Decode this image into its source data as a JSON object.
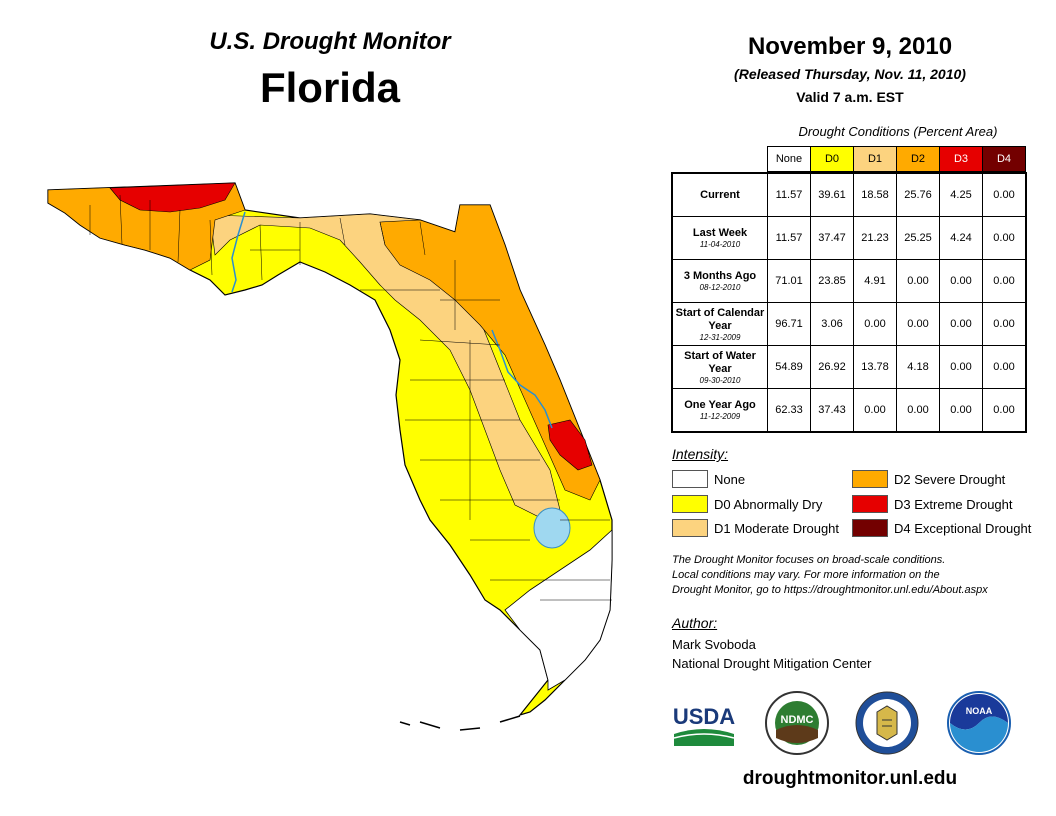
{
  "header": {
    "title": "U.S. Drought Monitor",
    "state": "Florida",
    "date": "November 9, 2010",
    "released": "(Released Thursday, Nov. 11, 2010)",
    "valid": "Valid 7 a.m. EST"
  },
  "conditions": {
    "title": "Drought Conditions (Percent Area)",
    "columns": [
      "None",
      "D0",
      "D1",
      "D2",
      "D3",
      "D4"
    ],
    "column_colors": [
      "#ffffff",
      "#ffff00",
      "#fcd37f",
      "#ffaa00",
      "#e60000",
      "#730000"
    ],
    "rows": [
      {
        "label": "Current",
        "sub": "",
        "values": [
          "11.57",
          "39.61",
          "18.58",
          "25.76",
          "4.25",
          "0.00"
        ]
      },
      {
        "label": "Last Week",
        "sub": "11-04-2010",
        "values": [
          "11.57",
          "37.47",
          "21.23",
          "25.25",
          "4.24",
          "0.00"
        ]
      },
      {
        "label": "3 Months Ago",
        "sub": "08-12-2010",
        "values": [
          "71.01",
          "23.85",
          "4.91",
          "0.00",
          "0.00",
          "0.00"
        ]
      },
      {
        "label": "Start of Calendar Year",
        "sub": "12-31-2009",
        "values": [
          "96.71",
          "3.06",
          "0.00",
          "0.00",
          "0.00",
          "0.00"
        ]
      },
      {
        "label": "Start of Water Year",
        "sub": "09-30-2010",
        "values": [
          "54.89",
          "26.92",
          "13.78",
          "4.18",
          "0.00",
          "0.00"
        ]
      },
      {
        "label": "One Year Ago",
        "sub": "11-12-2009",
        "values": [
          "62.33",
          "37.43",
          "0.00",
          "0.00",
          "0.00",
          "0.00"
        ]
      }
    ]
  },
  "legend": {
    "title": "Intensity:",
    "items": [
      {
        "label": "None",
        "color": "#ffffff"
      },
      {
        "label": "D0 Abnormally Dry",
        "color": "#ffff00"
      },
      {
        "label": "D1 Moderate Drought",
        "color": "#fcd37f"
      },
      {
        "label": "D2 Severe Drought",
        "color": "#ffaa00"
      },
      {
        "label": "D3 Extreme Drought",
        "color": "#e60000"
      },
      {
        "label": "D4 Exceptional Drought",
        "color": "#730000"
      }
    ]
  },
  "note": {
    "line1": "The Drought Monitor focuses on broad-scale conditions.",
    "line2": "Local conditions may vary. For more information on the",
    "line3": "Drought Monitor, go to https://droughtmonitor.unl.edu/About.aspx"
  },
  "author": {
    "title": "Author:",
    "name": "Mark Svoboda",
    "org": "National Drought Mitigation Center"
  },
  "logos": {
    "usda": "USDA",
    "ndmc": "NDMC",
    "noaa": "NOAA"
  },
  "footer": {
    "url": "droughtmonitor.unl.edu"
  }
}
